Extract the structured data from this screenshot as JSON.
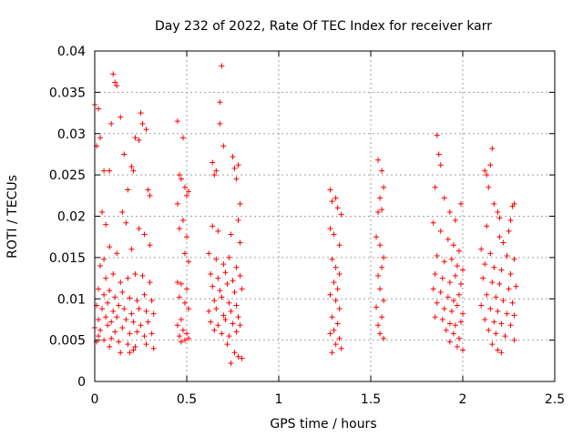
{
  "chart_data": {
    "type": "scatter",
    "title": "Day 232 of 2022, Rate Of TEC Index for receiver karr",
    "xlabel": "GPS time / hours",
    "ylabel": "ROTI / TECUs",
    "xlim": [
      0,
      2.5
    ],
    "ylim": [
      0,
      0.04
    ],
    "xticks": [
      "0",
      "0.5",
      "1",
      "1.5",
      "2",
      "2.5"
    ],
    "yticks": [
      "0",
      "0.005",
      "0.01",
      "0.015",
      "0.02",
      "0.025",
      "0.03",
      "0.035",
      "0.04"
    ],
    "grid": true,
    "marker": "+",
    "color": "#ff0000",
    "series": [
      {
        "points": [
          [
            0.0,
            0.0335
          ],
          [
            0.02,
            0.033
          ],
          [
            0.01,
            0.0285
          ],
          [
            0.03,
            0.0295
          ],
          [
            0.05,
            0.0255
          ],
          [
            0.04,
            0.0205
          ],
          [
            0.06,
            0.019
          ],
          [
            0.1,
            0.0372
          ],
          [
            0.11,
            0.0362
          ],
          [
            0.12,
            0.0358
          ],
          [
            0.09,
            0.0312
          ],
          [
            0.14,
            0.032
          ],
          [
            0.16,
            0.0275
          ],
          [
            0.08,
            0.0255
          ],
          [
            0.22,
            0.0295
          ],
          [
            0.25,
            0.0325
          ],
          [
            0.26,
            0.0312
          ],
          [
            0.28,
            0.0305
          ],
          [
            0.24,
            0.0292
          ],
          [
            0.2,
            0.026
          ],
          [
            0.21,
            0.0255
          ],
          [
            0.18,
            0.0232
          ],
          [
            0.29,
            0.0232
          ],
          [
            0.3,
            0.0225
          ],
          [
            0.15,
            0.0205
          ],
          [
            0.17,
            0.0192
          ],
          [
            0.24,
            0.0185
          ],
          [
            0.27,
            0.0178
          ],
          [
            0.3,
            0.0165
          ],
          [
            0.2,
            0.016
          ],
          [
            0.12,
            0.0155
          ],
          [
            0.08,
            0.0163
          ],
          [
            0.05,
            0.0148
          ],
          [
            0.03,
            0.014
          ],
          [
            0.06,
            0.0125
          ],
          [
            0.1,
            0.013
          ],
          [
            0.14,
            0.012
          ],
          [
            0.18,
            0.0125
          ],
          [
            0.22,
            0.013
          ],
          [
            0.26,
            0.0128
          ],
          [
            0.3,
            0.012
          ],
          [
            0.02,
            0.0112
          ],
          [
            0.05,
            0.0105
          ],
          [
            0.08,
            0.011
          ],
          [
            0.11,
            0.0102
          ],
          [
            0.15,
            0.0108
          ],
          [
            0.19,
            0.0101
          ],
          [
            0.23,
            0.0098
          ],
          [
            0.27,
            0.0105
          ],
          [
            0.31,
            0.0098
          ],
          [
            0.01,
            0.0092
          ],
          [
            0.04,
            0.0088
          ],
          [
            0.07,
            0.0095
          ],
          [
            0.1,
            0.0085
          ],
          [
            0.13,
            0.0092
          ],
          [
            0.16,
            0.0088
          ],
          [
            0.2,
            0.0082
          ],
          [
            0.24,
            0.0088
          ],
          [
            0.28,
            0.0085
          ],
          [
            0.32,
            0.0082
          ],
          [
            0.02,
            0.0075
          ],
          [
            0.06,
            0.0078
          ],
          [
            0.09,
            0.0072
          ],
          [
            0.12,
            0.0078
          ],
          [
            0.17,
            0.0075
          ],
          [
            0.21,
            0.0072
          ],
          [
            0.25,
            0.0068
          ],
          [
            0.29,
            0.0072
          ],
          [
            0.0,
            0.0065
          ],
          [
            0.03,
            0.0062
          ],
          [
            0.07,
            0.0068
          ],
          [
            0.11,
            0.006
          ],
          [
            0.15,
            0.0065
          ],
          [
            0.19,
            0.0058
          ],
          [
            0.23,
            0.006
          ],
          [
            0.27,
            0.0055
          ],
          [
            0.31,
            0.0058
          ],
          [
            0.02,
            0.0055
          ],
          [
            0.05,
            0.005
          ],
          [
            0.09,
            0.0052
          ],
          [
            0.13,
            0.0048
          ],
          [
            0.18,
            0.0045
          ],
          [
            0.22,
            0.0042
          ],
          [
            0.28,
            0.0045
          ],
          [
            0.32,
            0.004
          ],
          [
            0.14,
            0.0035
          ],
          [
            0.19,
            0.0035
          ],
          [
            0.21,
            0.0038
          ],
          [
            0.08,
            0.0042
          ],
          [
            0.01,
            0.0048
          ],
          [
            0.45,
            0.0315
          ],
          [
            0.48,
            0.0295
          ],
          [
            0.46,
            0.025
          ],
          [
            0.47,
            0.0245
          ],
          [
            0.49,
            0.0235
          ],
          [
            0.5,
            0.0225
          ],
          [
            0.51,
            0.023
          ],
          [
            0.45,
            0.0215
          ],
          [
            0.48,
            0.0195
          ],
          [
            0.46,
            0.0185
          ],
          [
            0.5,
            0.0175
          ],
          [
            0.49,
            0.0155
          ],
          [
            0.51,
            0.0145
          ],
          [
            0.45,
            0.012
          ],
          [
            0.47,
            0.0118
          ],
          [
            0.5,
            0.0112
          ],
          [
            0.46,
            0.0102
          ],
          [
            0.49,
            0.0095
          ],
          [
            0.51,
            0.0088
          ],
          [
            0.47,
            0.0075
          ],
          [
            0.45,
            0.0068
          ],
          [
            0.48,
            0.0062
          ],
          [
            0.5,
            0.0058
          ],
          [
            0.46,
            0.0055
          ],
          [
            0.49,
            0.005
          ],
          [
            0.51,
            0.0052
          ],
          [
            0.47,
            0.0048
          ],
          [
            0.64,
            0.0265
          ],
          [
            0.66,
            0.0255
          ],
          [
            0.69,
            0.0382
          ],
          [
            0.68,
            0.0338
          ],
          [
            0.68,
            0.0312
          ],
          [
            0.7,
            0.0285
          ],
          [
            0.75,
            0.0272
          ],
          [
            0.76,
            0.0258
          ],
          [
            0.78,
            0.0262
          ],
          [
            0.77,
            0.0245
          ],
          [
            0.65,
            0.025
          ],
          [
            0.79,
            0.0215
          ],
          [
            0.78,
            0.0195
          ],
          [
            0.64,
            0.0188
          ],
          [
            0.67,
            0.0182
          ],
          [
            0.74,
            0.0178
          ],
          [
            0.79,
            0.0168
          ],
          [
            0.62,
            0.0155
          ],
          [
            0.66,
            0.0148
          ],
          [
            0.7,
            0.0142
          ],
          [
            0.73,
            0.015
          ],
          [
            0.77,
            0.0138
          ],
          [
            0.63,
            0.013
          ],
          [
            0.67,
            0.0125
          ],
          [
            0.71,
            0.0132
          ],
          [
            0.75,
            0.0122
          ],
          [
            0.79,
            0.0128
          ],
          [
            0.64,
            0.0115
          ],
          [
            0.68,
            0.011
          ],
          [
            0.72,
            0.0118
          ],
          [
            0.76,
            0.0108
          ],
          [
            0.8,
            0.0112
          ],
          [
            0.65,
            0.0098
          ],
          [
            0.69,
            0.0102
          ],
          [
            0.73,
            0.0095
          ],
          [
            0.77,
            0.0092
          ],
          [
            0.62,
            0.0085
          ],
          [
            0.66,
            0.0088
          ],
          [
            0.7,
            0.008
          ],
          [
            0.74,
            0.0085
          ],
          [
            0.78,
            0.0078
          ],
          [
            0.63,
            0.0072
          ],
          [
            0.67,
            0.0068
          ],
          [
            0.71,
            0.0075
          ],
          [
            0.75,
            0.007
          ],
          [
            0.79,
            0.0068
          ],
          [
            0.65,
            0.0062
          ],
          [
            0.69,
            0.0058
          ],
          [
            0.73,
            0.0055
          ],
          [
            0.77,
            0.006
          ],
          [
            0.72,
            0.0045
          ],
          [
            0.76,
            0.0035
          ],
          [
            0.78,
            0.003
          ],
          [
            0.8,
            0.0028
          ],
          [
            0.74,
            0.0022
          ],
          [
            1.28,
            0.0232
          ],
          [
            1.29,
            0.0218
          ],
          [
            1.31,
            0.0222
          ],
          [
            1.32,
            0.021
          ],
          [
            1.34,
            0.0202
          ],
          [
            1.28,
            0.0185
          ],
          [
            1.3,
            0.0178
          ],
          [
            1.33,
            0.0165
          ],
          [
            1.29,
            0.0148
          ],
          [
            1.31,
            0.0138
          ],
          [
            1.33,
            0.013
          ],
          [
            1.3,
            0.012
          ],
          [
            1.32,
            0.0112
          ],
          [
            1.28,
            0.0105
          ],
          [
            1.31,
            0.0098
          ],
          [
            1.33,
            0.0088
          ],
          [
            1.29,
            0.0078
          ],
          [
            1.32,
            0.007
          ],
          [
            1.3,
            0.0062
          ],
          [
            1.28,
            0.0058
          ],
          [
            1.33,
            0.0052
          ],
          [
            1.31,
            0.0045
          ],
          [
            1.34,
            0.004
          ],
          [
            1.29,
            0.0035
          ],
          [
            1.54,
            0.0268
          ],
          [
            1.56,
            0.0255
          ],
          [
            1.57,
            0.0235
          ],
          [
            1.55,
            0.0222
          ],
          [
            1.56,
            0.0208
          ],
          [
            1.54,
            0.0205
          ],
          [
            1.53,
            0.0175
          ],
          [
            1.55,
            0.0165
          ],
          [
            1.57,
            0.015
          ],
          [
            1.56,
            0.0138
          ],
          [
            1.54,
            0.0128
          ],
          [
            1.55,
            0.0112
          ],
          [
            1.57,
            0.0098
          ],
          [
            1.53,
            0.009
          ],
          [
            1.56,
            0.0078
          ],
          [
            1.54,
            0.0068
          ],
          [
            1.55,
            0.0058
          ],
          [
            1.57,
            0.0052
          ],
          [
            1.86,
            0.0298
          ],
          [
            1.87,
            0.0275
          ],
          [
            1.88,
            0.0262
          ],
          [
            1.85,
            0.0235
          ],
          [
            1.9,
            0.0222
          ],
          [
            1.93,
            0.0205
          ],
          [
            1.96,
            0.0195
          ],
          [
            1.99,
            0.0215
          ],
          [
            1.84,
            0.0192
          ],
          [
            1.88,
            0.0182
          ],
          [
            1.92,
            0.0172
          ],
          [
            1.95,
            0.0165
          ],
          [
            1.98,
            0.0158
          ],
          [
            1.86,
            0.0152
          ],
          [
            1.9,
            0.0145
          ],
          [
            1.94,
            0.0148
          ],
          [
            1.97,
            0.014
          ],
          [
            2.0,
            0.0135
          ],
          [
            1.85,
            0.013
          ],
          [
            1.89,
            0.0125
          ],
          [
            1.93,
            0.012
          ],
          [
            1.96,
            0.0128
          ],
          [
            1.99,
            0.0118
          ],
          [
            1.84,
            0.0112
          ],
          [
            1.88,
            0.0108
          ],
          [
            1.92,
            0.0102
          ],
          [
            1.95,
            0.0098
          ],
          [
            1.98,
            0.0105
          ],
          [
            1.86,
            0.0095
          ],
          [
            1.9,
            0.0088
          ],
          [
            1.94,
            0.0085
          ],
          [
            1.97,
            0.0092
          ],
          [
            2.0,
            0.0082
          ],
          [
            1.85,
            0.0078
          ],
          [
            1.89,
            0.0075
          ],
          [
            1.93,
            0.007
          ],
          [
            1.96,
            0.0068
          ],
          [
            1.99,
            0.0072
          ],
          [
            1.91,
            0.0062
          ],
          [
            1.95,
            0.0058
          ],
          [
            1.98,
            0.0052
          ],
          [
            1.93,
            0.0048
          ],
          [
            1.97,
            0.0042
          ],
          [
            2.0,
            0.0038
          ],
          [
            2.12,
            0.0255
          ],
          [
            2.13,
            0.025
          ],
          [
            2.15,
            0.0262
          ],
          [
            2.16,
            0.0282
          ],
          [
            2.14,
            0.0235
          ],
          [
            2.17,
            0.0215
          ],
          [
            2.19,
            0.0205
          ],
          [
            2.2,
            0.0198
          ],
          [
            2.27,
            0.0212
          ],
          [
            2.28,
            0.0215
          ],
          [
            2.26,
            0.0195
          ],
          [
            2.25,
            0.0182
          ],
          [
            2.13,
            0.0188
          ],
          [
            2.2,
            0.0175
          ],
          [
            2.22,
            0.0168
          ],
          [
            2.1,
            0.016
          ],
          [
            2.15,
            0.0155
          ],
          [
            2.24,
            0.0152
          ],
          [
            2.28,
            0.0148
          ],
          [
            2.12,
            0.0142
          ],
          [
            2.17,
            0.0138
          ],
          [
            2.21,
            0.0135
          ],
          [
            2.26,
            0.013
          ],
          [
            2.11,
            0.0125
          ],
          [
            2.16,
            0.012
          ],
          [
            2.2,
            0.0118
          ],
          [
            2.25,
            0.0112
          ],
          [
            2.29,
            0.0115
          ],
          [
            2.13,
            0.0105
          ],
          [
            2.18,
            0.0102
          ],
          [
            2.22,
            0.0098
          ],
          [
            2.27,
            0.0095
          ],
          [
            2.1,
            0.0092
          ],
          [
            2.15,
            0.0088
          ],
          [
            2.19,
            0.0085
          ],
          [
            2.24,
            0.0082
          ],
          [
            2.28,
            0.008
          ],
          [
            2.12,
            0.0075
          ],
          [
            2.17,
            0.0072
          ],
          [
            2.21,
            0.007
          ],
          [
            2.26,
            0.0068
          ],
          [
            2.14,
            0.0062
          ],
          [
            2.18,
            0.0058
          ],
          [
            2.23,
            0.0055
          ],
          [
            2.28,
            0.005
          ],
          [
            2.16,
            0.0045
          ],
          [
            2.19,
            0.0038
          ],
          [
            2.21,
            0.0035
          ]
        ]
      }
    ]
  }
}
